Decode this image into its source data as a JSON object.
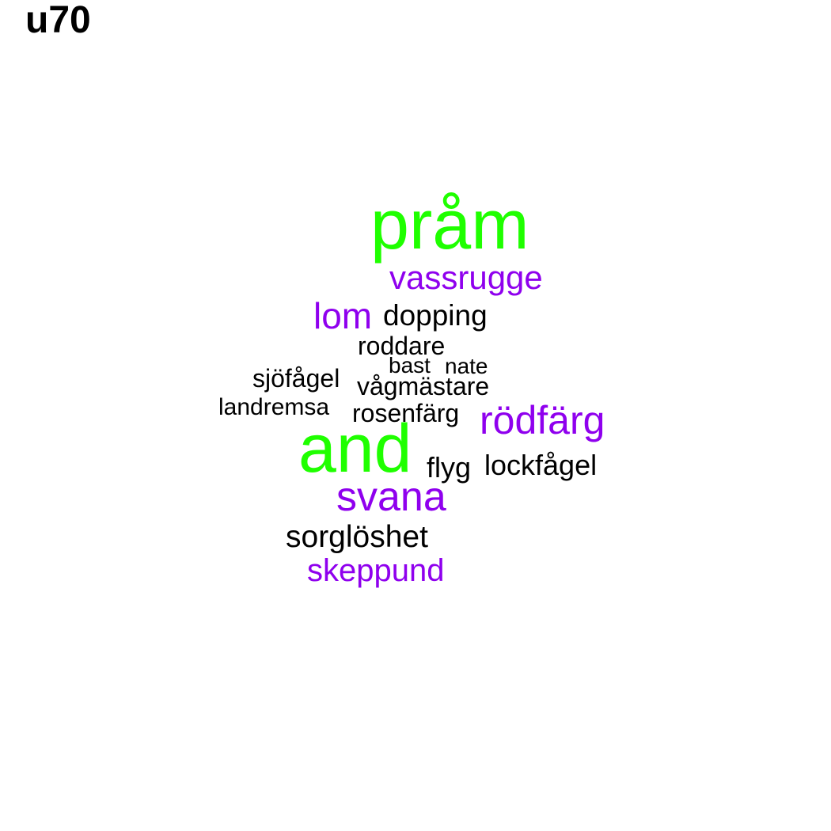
{
  "title": "u70",
  "colors": {
    "green": "#1fff00",
    "purple": "#8f00ee",
    "black": "#000000"
  },
  "words": [
    {
      "text": "pråm",
      "color": "green"
    },
    {
      "text": "vassrugge",
      "color": "purple"
    },
    {
      "text": "lom",
      "color": "purple"
    },
    {
      "text": "dopping",
      "color": "black"
    },
    {
      "text": "roddare",
      "color": "black"
    },
    {
      "text": "bast",
      "color": "black"
    },
    {
      "text": "nate",
      "color": "black"
    },
    {
      "text": "sjöfågel",
      "color": "black"
    },
    {
      "text": "vågmästare",
      "color": "black"
    },
    {
      "text": "landremsa",
      "color": "black"
    },
    {
      "text": "rosenfärg",
      "color": "black"
    },
    {
      "text": "rödfärg",
      "color": "purple"
    },
    {
      "text": "and",
      "color": "green"
    },
    {
      "text": "flyg",
      "color": "black"
    },
    {
      "text": "lockfågel",
      "color": "black"
    },
    {
      "text": "svana",
      "color": "purple"
    },
    {
      "text": "sorglöshet",
      "color": "black"
    },
    {
      "text": "skeppund",
      "color": "purple"
    }
  ]
}
